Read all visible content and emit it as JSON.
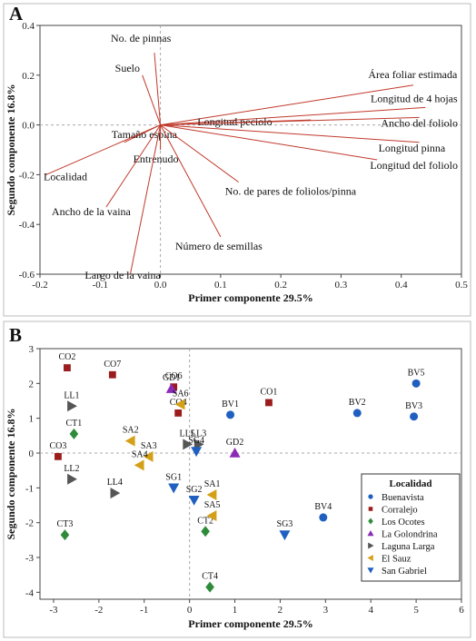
{
  "chart_data": [
    {
      "panel": "A",
      "type": "biplot-loadings",
      "xlabel": "Primer componente 29.5%",
      "ylabel": "Segundo componente 16.8%",
      "xlim": [
        -0.2,
        0.5
      ],
      "ylim": [
        -0.6,
        0.4
      ],
      "xticks": [
        "-0.2",
        "-0.1",
        "0.0",
        "0.1",
        "0.2",
        "0.3",
        "0.4",
        "0.5"
      ],
      "yticks": [
        "0.4",
        "0.2",
        "0.0",
        "-0.2",
        "-0.4",
        "-0.6"
      ],
      "vectors": [
        {
          "label": "No. de pinnas",
          "x": -0.01,
          "y": 0.29
        },
        {
          "label": "Suelo",
          "x": -0.03,
          "y": 0.2
        },
        {
          "label": "Área foliar estimada",
          "x": 0.42,
          "y": 0.16
        },
        {
          "label": "Longitud de 4 hojas",
          "x": 0.44,
          "y": 0.07
        },
        {
          "label": "Longitud peciolo",
          "x": 0.25,
          "y": 0.02
        },
        {
          "label": "Ancho del foliolo",
          "x": 0.43,
          "y": 0.03
        },
        {
          "label": "Longitud pinna",
          "x": 0.43,
          "y": -0.07
        },
        {
          "label": "Longitud del foliolo",
          "x": 0.36,
          "y": -0.14
        },
        {
          "label": "Tamaño espina",
          "x": -0.06,
          "y": -0.07
        },
        {
          "label": "Entrenudo",
          "x": 0.0,
          "y": -0.1
        },
        {
          "label": "Localidad",
          "x": -0.19,
          "y": -0.2
        },
        {
          "label": "No. de pares de foliolos/pinna",
          "x": 0.13,
          "y": -0.23
        },
        {
          "label": "Ancho de la vaina",
          "x": -0.09,
          "y": -0.33
        },
        {
          "label": "Número de semillas",
          "x": 0.1,
          "y": -0.45
        },
        {
          "label": "Largo de la vaina",
          "x": -0.05,
          "y": -0.6
        }
      ]
    },
    {
      "panel": "B",
      "type": "scatter",
      "xlabel": "Primer componente 29.5%",
      "ylabel": "Segundo componente 16.8%",
      "xlim": [
        -3.3,
        6
      ],
      "ylim": [
        -4.2,
        3
      ],
      "xticks": [
        "-3",
        "-2",
        "-1",
        "0",
        "1",
        "2",
        "3",
        "4",
        "5",
        "6"
      ],
      "yticks": [
        "3",
        "2",
        "1",
        "0",
        "-1",
        "-2",
        "-3",
        "-4"
      ],
      "legend_title": "Localidad",
      "series": [
        {
          "name": "Buenavista",
          "marker": "circle",
          "color": "#1f5fbf",
          "points": [
            {
              "label": "BV1",
              "x": 0.9,
              "y": 1.1
            },
            {
              "label": "BV2",
              "x": 3.7,
              "y": 1.15
            },
            {
              "label": "BV3",
              "x": 4.95,
              "y": 1.05
            },
            {
              "label": "BV4",
              "x": 2.95,
              "y": -1.85
            },
            {
              "label": "BV5",
              "x": 5.0,
              "y": 2.0
            }
          ]
        },
        {
          "name": "Corralejo",
          "marker": "square",
          "color": "#9b1c1c",
          "points": [
            {
              "label": "CO1",
              "x": 1.75,
              "y": 1.45
            },
            {
              "label": "CO2",
              "x": -2.7,
              "y": 2.45
            },
            {
              "label": "CO3",
              "x": -2.9,
              "y": -0.1
            },
            {
              "label": "CO4",
              "x": -0.25,
              "y": 1.15
            },
            {
              "label": "CO6",
              "x": -0.35,
              "y": 1.9
            },
            {
              "label": "CO7",
              "x": -1.7,
              "y": 2.25
            }
          ]
        },
        {
          "name": "Los Ocotes",
          "marker": "diamond",
          "color": "#2e8b3a",
          "points": [
            {
              "label": "CT1",
              "x": -2.55,
              "y": 0.55
            },
            {
              "label": "CT2",
              "x": 0.35,
              "y": -2.25
            },
            {
              "label": "CT3",
              "x": -2.75,
              "y": -2.35
            },
            {
              "label": "CT4",
              "x": 0.45,
              "y": -3.85
            }
          ]
        },
        {
          "name": "La Golondrina",
          "marker": "triangle-up",
          "color": "#8b2bb5",
          "points": [
            {
              "label": "GD1",
              "x": -0.4,
              "y": 1.85
            },
            {
              "label": "GD2",
              "x": 1.0,
              "y": 0.0
            }
          ]
        },
        {
          "name": "Laguna Larga",
          "marker": "triangle-right",
          "color": "#555555",
          "points": [
            {
              "label": "LL1",
              "x": -2.6,
              "y": 1.35
            },
            {
              "label": "LL2",
              "x": -2.6,
              "y": -0.75
            },
            {
              "label": "LL3",
              "x": 0.2,
              "y": 0.25
            },
            {
              "label": "LL4",
              "x": -1.65,
              "y": -1.15
            },
            {
              "label": "LL5",
              "x": -0.05,
              "y": 0.25
            }
          ]
        },
        {
          "name": "El Sauz",
          "marker": "triangle-left",
          "color": "#d4a017",
          "points": [
            {
              "label": "SA1",
              "x": 0.5,
              "y": -1.2
            },
            {
              "label": "SA2",
              "x": -1.3,
              "y": 0.35
            },
            {
              "label": "SA3",
              "x": -0.9,
              "y": -0.1
            },
            {
              "label": "SA4",
              "x": -1.1,
              "y": -0.35
            },
            {
              "label": "SA5",
              "x": 0.5,
              "y": -1.8
            },
            {
              "label": "SA6",
              "x": -0.2,
              "y": 1.4
            }
          ]
        },
        {
          "name": "San Gabriel",
          "marker": "triangle-down",
          "color": "#1f5fbf",
          "points": [
            {
              "label": "SG1",
              "x": -0.35,
              "y": -1.0
            },
            {
              "label": "SG2",
              "x": 0.1,
              "y": -1.35
            },
            {
              "label": "SG3",
              "x": 2.1,
              "y": -2.35
            },
            {
              "label": "SG4",
              "x": 0.15,
              "y": 0.05
            }
          ]
        }
      ]
    }
  ]
}
